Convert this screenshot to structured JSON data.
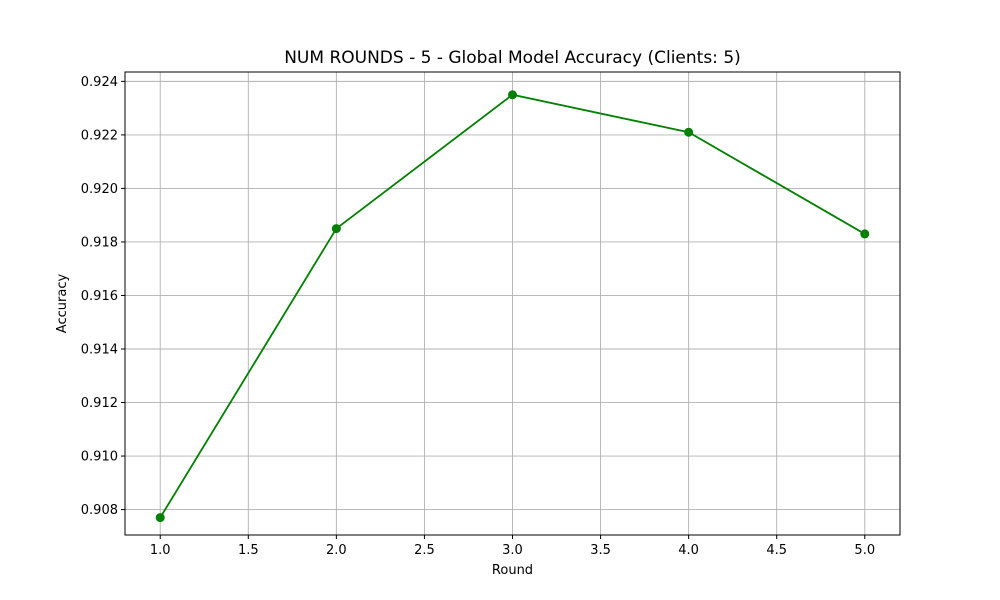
{
  "chart_data": {
    "type": "line",
    "title": "NUM ROUNDS - 5 - Global Model Accuracy (Clients: 5)",
    "xlabel": "Round",
    "ylabel": "Accuracy",
    "x": [
      1.0,
      2.0,
      3.0,
      4.0,
      5.0
    ],
    "series": [
      {
        "values": [
          0.9077,
          0.9185,
          0.9235,
          0.9221,
          0.9183
        ],
        "color": "#008000",
        "marker": "circle"
      }
    ],
    "xlim": [
      0.8,
      5.2
    ],
    "ylim": [
      0.90705,
      0.92435
    ],
    "xticks": [
      1.0,
      1.5,
      2.0,
      2.5,
      3.0,
      3.5,
      4.0,
      4.5,
      5.0
    ],
    "xtick_labels": [
      "1.0",
      "1.5",
      "2.0",
      "2.5",
      "3.0",
      "3.5",
      "4.0",
      "4.5",
      "5.0"
    ],
    "yticks": [
      0.908,
      0.91,
      0.912,
      0.914,
      0.916,
      0.918,
      0.92,
      0.922,
      0.924
    ],
    "ytick_labels": [
      "0.908",
      "0.910",
      "0.912",
      "0.914",
      "0.916",
      "0.918",
      "0.920",
      "0.922",
      "0.924"
    ],
    "grid": true,
    "grid_color": "#b0b0b0",
    "legend": false
  }
}
